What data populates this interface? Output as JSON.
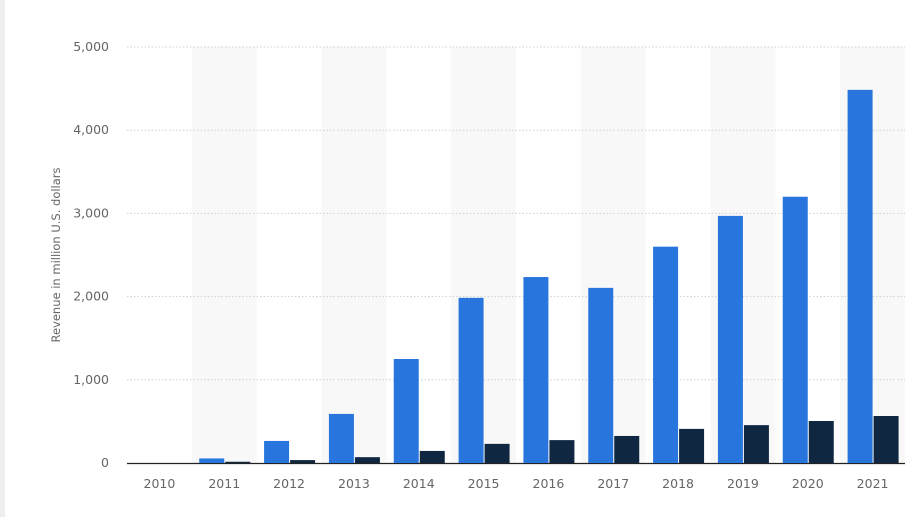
{
  "chart_data": {
    "type": "bar",
    "title": "",
    "xlabel": "",
    "ylabel": "Revenue in million U.S. dollars",
    "ylim": [
      0,
      5000
    ],
    "yticks": [
      0,
      1000,
      2000,
      3000,
      4000,
      5000
    ],
    "ytick_labels": [
      "0",
      "1,000",
      "2,000",
      "3,000",
      "4,000",
      "5,000"
    ],
    "grid": "horizontal dotted",
    "legend": "none",
    "categories": [
      "2010",
      "2011",
      "2012",
      "2013",
      "2014",
      "2015",
      "2016",
      "2017",
      "2018",
      "2019",
      "2020",
      "2021"
    ],
    "series": [
      {
        "color": "#2876dd",
        "values": [
          0,
          55,
          265,
          590,
          1250,
          1985,
          2235,
          2105,
          2600,
          2970,
          3200,
          4485
        ]
      },
      {
        "color": "#0f2740",
        "values": [
          0,
          15,
          35,
          70,
          145,
          230,
          275,
          325,
          410,
          455,
          505,
          565
        ]
      }
    ]
  }
}
